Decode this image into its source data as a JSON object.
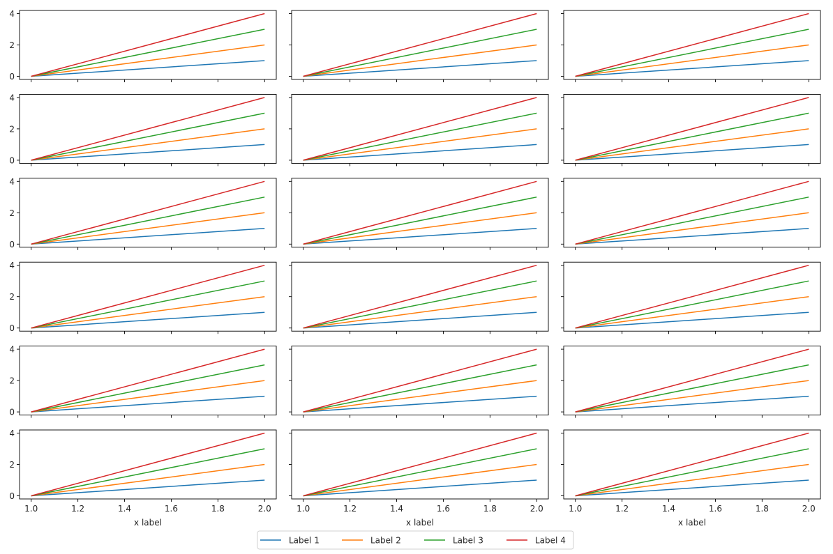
{
  "chart_data": {
    "type": "line",
    "layout": "6x3 grid of subplots, shared axes",
    "rows": 6,
    "cols": 3,
    "x": [
      1.0,
      2.0
    ],
    "series": [
      {
        "name": "Label 1",
        "values": [
          0,
          1
        ],
        "color": "#1f77b4"
      },
      {
        "name": "Label 2",
        "values": [
          0,
          2
        ],
        "color": "#ff7f0e"
      },
      {
        "name": "Label 3",
        "values": [
          0,
          3
        ],
        "color": "#2ca02c"
      },
      {
        "name": "Label 4",
        "values": [
          0,
          4
        ],
        "color": "#d62728"
      }
    ],
    "xlim": [
      0.95,
      2.05
    ],
    "ylim": [
      -0.2,
      4.2
    ],
    "xticks": [
      1.0,
      1.2,
      1.4,
      1.6,
      1.8,
      2.0
    ],
    "xtick_labels": [
      "1.0",
      "1.2",
      "1.4",
      "1.6",
      "1.8",
      "2.0"
    ],
    "yticks": [
      0,
      2,
      4
    ],
    "ytick_labels": [
      "0",
      "2",
      "4"
    ],
    "xlabel": "x label",
    "ylabel": "",
    "title": "",
    "grid": false,
    "legend": {
      "placement": "bottom-center",
      "ncol": 4,
      "entries": [
        "Label 1",
        "Label 2",
        "Label 3",
        "Label 4"
      ]
    }
  }
}
